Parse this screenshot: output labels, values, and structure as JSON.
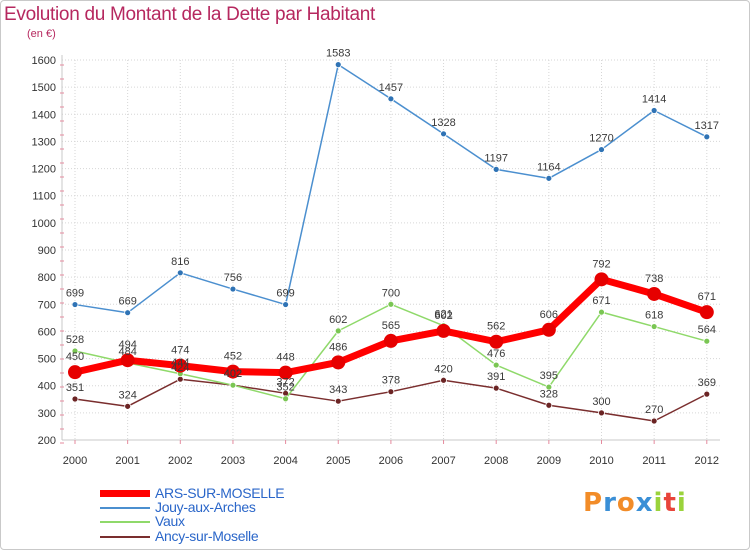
{
  "chart_data": {
    "type": "line",
    "title": "Evolution du Montant de la Dette par Habitant",
    "subtitle": "(en €)",
    "x": [
      "2000",
      "2001",
      "2002",
      "2003",
      "2004",
      "2005",
      "2006",
      "2007",
      "2008",
      "2009",
      "2010",
      "2011",
      "2012"
    ],
    "ylim": [
      200,
      1600
    ],
    "yticks": [
      200,
      300,
      400,
      500,
      600,
      700,
      800,
      900,
      1000,
      1100,
      1200,
      1300,
      1400,
      1500,
      1600
    ],
    "grid": true,
    "legend_position": "bottom-left",
    "series": [
      {
        "name": "ARS-SUR-MOSELLE",
        "color": "#ff0000",
        "values": [
          450,
          494,
          474,
          452,
          448,
          486,
          565,
          602,
          562,
          606,
          792,
          738,
          671
        ]
      },
      {
        "name": "Jouy-aux-Arches",
        "color": "#4b8fcf",
        "values": [
          699,
          669,
          816,
          756,
          699,
          1583,
          1457,
          1328,
          1197,
          1164,
          1270,
          1414,
          1317
        ]
      },
      {
        "name": "Vaux",
        "color": "#8fd96a",
        "values": [
          528,
          484,
          444,
          402,
          352,
          602,
          700,
          621,
          476,
          395,
          671,
          618,
          564
        ]
      },
      {
        "name": "Ancy-sur-Moselle",
        "color": "#7a2e2e",
        "values": [
          351,
          324,
          424,
          402,
          372,
          343,
          378,
          420,
          391,
          328,
          300,
          270,
          369
        ]
      }
    ]
  },
  "logo": {
    "letters": [
      "P",
      "r",
      "o",
      "x",
      "i",
      "t",
      "i"
    ],
    "colors": [
      "#f28c28",
      "#3a8fd6",
      "#f28c28",
      "#3a8fd6",
      "#9ad33b",
      "#e8443a",
      "#9ad33b"
    ]
  }
}
